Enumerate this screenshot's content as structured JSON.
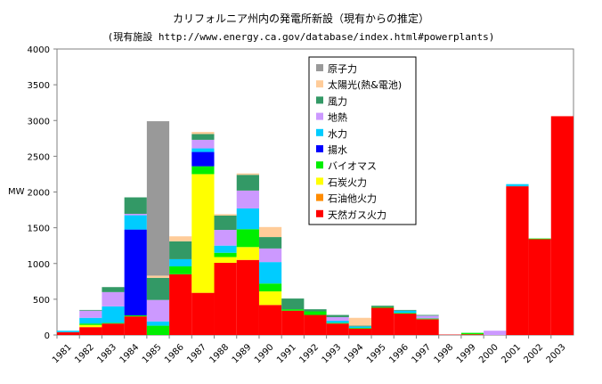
{
  "chart_data": {
    "type": "bar",
    "stacked": true,
    "title": "カリフォルニア州内の発電所新設（現有からの推定）",
    "subtitle": "(現有施設 http://www.energy.ca.gov/database/index.html#powerplants)",
    "xlabel": "",
    "ylabel": "MW",
    "ylim": [
      0,
      4000
    ],
    "yticks": [
      0,
      500,
      1000,
      1500,
      2000,
      2500,
      3000,
      3500,
      4000
    ],
    "categories": [
      "1981",
      "1982",
      "1983",
      "1984",
      "1985",
      "1986",
      "1987",
      "1988",
      "1989",
      "1990",
      "1991",
      "1992",
      "1993",
      "1994",
      "1995",
      "1996",
      "1997",
      "1998",
      "1999",
      "2000",
      "2001",
      "2002",
      "2003"
    ],
    "grid": false,
    "legend_position": "top-right",
    "series": [
      {
        "name": "天然ガス火力",
        "color": "#ff0000",
        "values": [
          40,
          110,
          160,
          260,
          0,
          850,
          590,
          1010,
          1050,
          420,
          340,
          280,
          160,
          90,
          380,
          300,
          220,
          5,
          10,
          0,
          2080,
          1340,
          3060
        ]
      },
      {
        "name": "石油他火力",
        "color": "#ff8c00",
        "values": [
          0,
          0,
          0,
          0,
          0,
          0,
          0,
          0,
          0,
          0,
          0,
          0,
          0,
          0,
          0,
          0,
          0,
          0,
          0,
          0,
          0,
          0,
          0
        ]
      },
      {
        "name": "石炭火力",
        "color": "#ffff00",
        "values": [
          0,
          30,
          0,
          0,
          0,
          0,
          1660,
          80,
          180,
          190,
          0,
          0,
          0,
          0,
          0,
          0,
          0,
          0,
          0,
          0,
          0,
          0,
          0
        ]
      },
      {
        "name": "バイオマス",
        "color": "#00ee00",
        "values": [
          0,
          20,
          10,
          15,
          130,
          110,
          110,
          60,
          250,
          110,
          20,
          50,
          10,
          10,
          10,
          10,
          10,
          0,
          20,
          0,
          0,
          10,
          0
        ]
      },
      {
        "name": "揚水",
        "color": "#0000ff",
        "values": [
          0,
          0,
          0,
          1200,
          0,
          0,
          200,
          0,
          0,
          0,
          0,
          0,
          0,
          0,
          0,
          0,
          0,
          0,
          0,
          0,
          0,
          0,
          0
        ]
      },
      {
        "name": "水力",
        "color": "#00ccff",
        "values": [
          20,
          80,
          230,
          200,
          60,
          100,
          50,
          100,
          290,
          300,
          0,
          0,
          30,
          20,
          0,
          30,
          0,
          0,
          0,
          0,
          30,
          0,
          0
        ]
      },
      {
        "name": "地熱",
        "color": "#cc99ff",
        "values": [
          0,
          100,
          200,
          20,
          300,
          0,
          120,
          220,
          250,
          190,
          0,
          0,
          50,
          0,
          0,
          0,
          40,
          0,
          0,
          60,
          0,
          0,
          0
        ]
      },
      {
        "name": "風力",
        "color": "#339966",
        "values": [
          0,
          10,
          70,
          230,
          310,
          250,
          80,
          200,
          220,
          160,
          150,
          30,
          30,
          10,
          20,
          10,
          10,
          0,
          0,
          0,
          0,
          0,
          0
        ]
      },
      {
        "name": "太陽光(熱&電池)",
        "color": "#ffcc99",
        "values": [
          0,
          0,
          0,
          0,
          30,
          70,
          30,
          20,
          20,
          140,
          0,
          0,
          0,
          110,
          0,
          0,
          0,
          0,
          0,
          0,
          0,
          0,
          0
        ]
      },
      {
        "name": "原子力",
        "color": "#999999",
        "values": [
          0,
          0,
          0,
          0,
          2160,
          0,
          0,
          0,
          0,
          0,
          0,
          0,
          0,
          0,
          0,
          0,
          0,
          0,
          0,
          0,
          0,
          0,
          0
        ]
      }
    ]
  }
}
